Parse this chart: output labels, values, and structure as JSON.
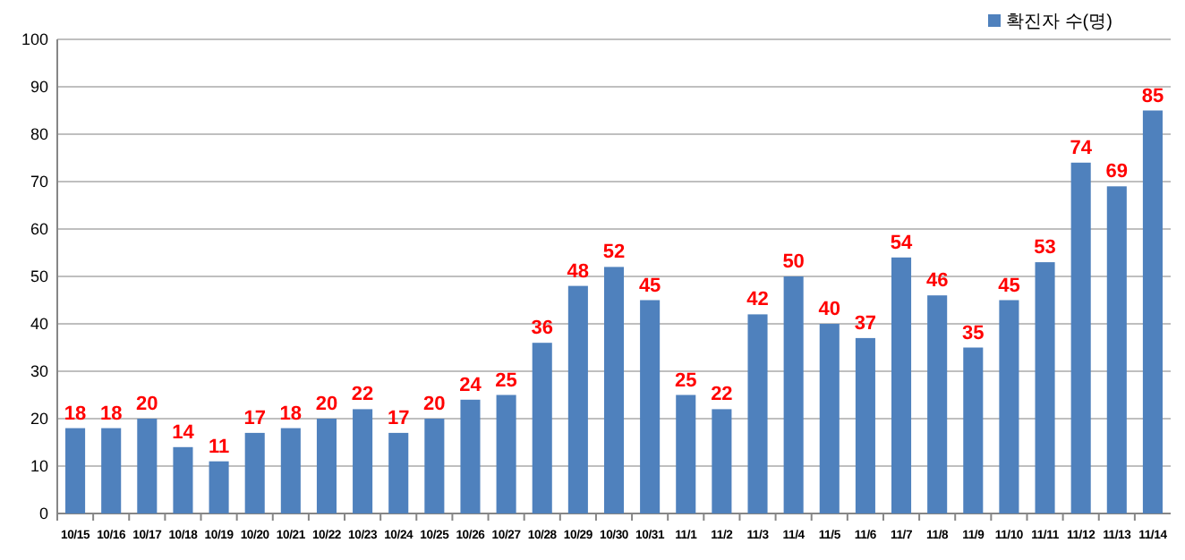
{
  "chart_data": {
    "type": "bar",
    "categories": [
      "10/15",
      "10/16",
      "10/17",
      "10/18",
      "10/19",
      "10/20",
      "10/21",
      "10/22",
      "10/23",
      "10/24",
      "10/25",
      "10/26",
      "10/27",
      "10/28",
      "10/29",
      "10/30",
      "10/31",
      "11/1",
      "11/2",
      "11/3",
      "11/4",
      "11/5",
      "11/6",
      "11/7",
      "11/8",
      "11/9",
      "11/10",
      "11/11",
      "11/12",
      "11/13",
      "11/14"
    ],
    "series": [
      {
        "name": "확진자 수(명)",
        "color": "#4f81bd",
        "values": [
          18,
          18,
          20,
          14,
          11,
          17,
          18,
          20,
          22,
          17,
          20,
          24,
          25,
          36,
          48,
          52,
          45,
          25,
          22,
          42,
          50,
          40,
          37,
          54,
          46,
          35,
          45,
          53,
          74,
          69,
          85
        ]
      }
    ],
    "ylim": [
      0,
      100
    ],
    "yticks": [
      0,
      10,
      20,
      30,
      40,
      50,
      60,
      70,
      80,
      90,
      100
    ],
    "grid": "y",
    "legend": "top right",
    "data_labels": true
  }
}
